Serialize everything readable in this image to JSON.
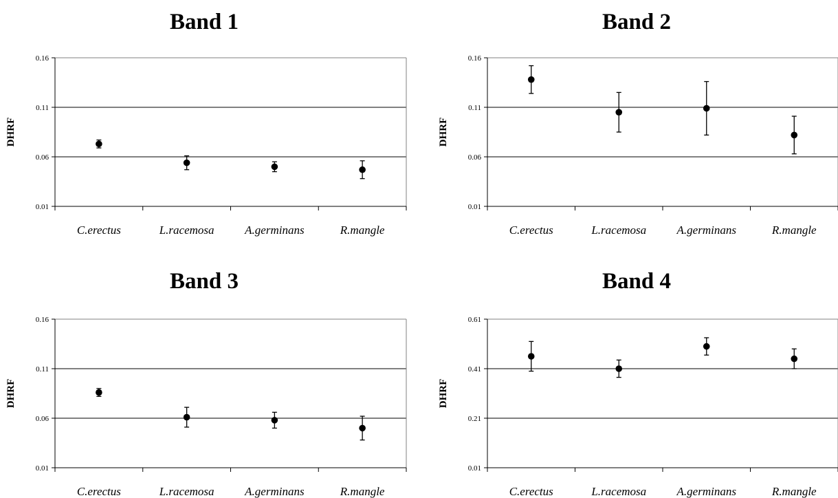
{
  "chart_data": [
    {
      "type": "scatter",
      "title": "Band 1",
      "xlabel": "",
      "ylabel": "DHRF",
      "categories": [
        "C.erectus",
        "L.racemosa",
        "A.germinans",
        "R.mangle"
      ],
      "yticks": [
        "0.01",
        "0.06",
        "0.11",
        "0.16"
      ],
      "ylim": [
        0.01,
        0.16
      ],
      "grid": true,
      "values": [
        0.073,
        0.054,
        0.05,
        0.047
      ],
      "error": [
        0.004,
        0.007,
        0.005,
        0.009
      ]
    },
    {
      "type": "scatter",
      "title": "Band 2",
      "xlabel": "",
      "ylabel": "DHRF",
      "categories": [
        "C.erectus",
        "L.racemosa",
        "A.germinans",
        "R.mangle"
      ],
      "yticks": [
        "0.01",
        "0.06",
        "0.11",
        "0.16"
      ],
      "ylim": [
        0.01,
        0.16
      ],
      "grid": true,
      "values": [
        0.138,
        0.105,
        0.109,
        0.082
      ],
      "error": [
        0.014,
        0.02,
        0.027,
        0.019
      ]
    },
    {
      "type": "scatter",
      "title": "Band 3",
      "xlabel": "",
      "ylabel": "DHRF",
      "categories": [
        "C.erectus",
        "L.racemosa",
        "A.germinans",
        "R.mangle"
      ],
      "yticks": [
        "0.01",
        "0.06",
        "0.11",
        "0.16"
      ],
      "ylim": [
        0.01,
        0.16
      ],
      "grid": true,
      "values": [
        0.086,
        0.061,
        0.058,
        0.05
      ],
      "error": [
        0.004,
        0.01,
        0.008,
        0.012
      ]
    },
    {
      "type": "scatter",
      "title": "Band 4",
      "xlabel": "",
      "ylabel": "DHRF",
      "categories": [
        "C.erectus",
        "L.racemosa",
        "A.germinans",
        "R.mangle"
      ],
      "yticks": [
        "0.01",
        "0.21",
        "0.41",
        "0.61"
      ],
      "ylim": [
        0.01,
        0.61
      ],
      "grid": true,
      "values": [
        0.46,
        0.41,
        0.5,
        0.45
      ],
      "error": [
        0.06,
        0.035,
        0.035,
        0.04
      ]
    }
  ]
}
